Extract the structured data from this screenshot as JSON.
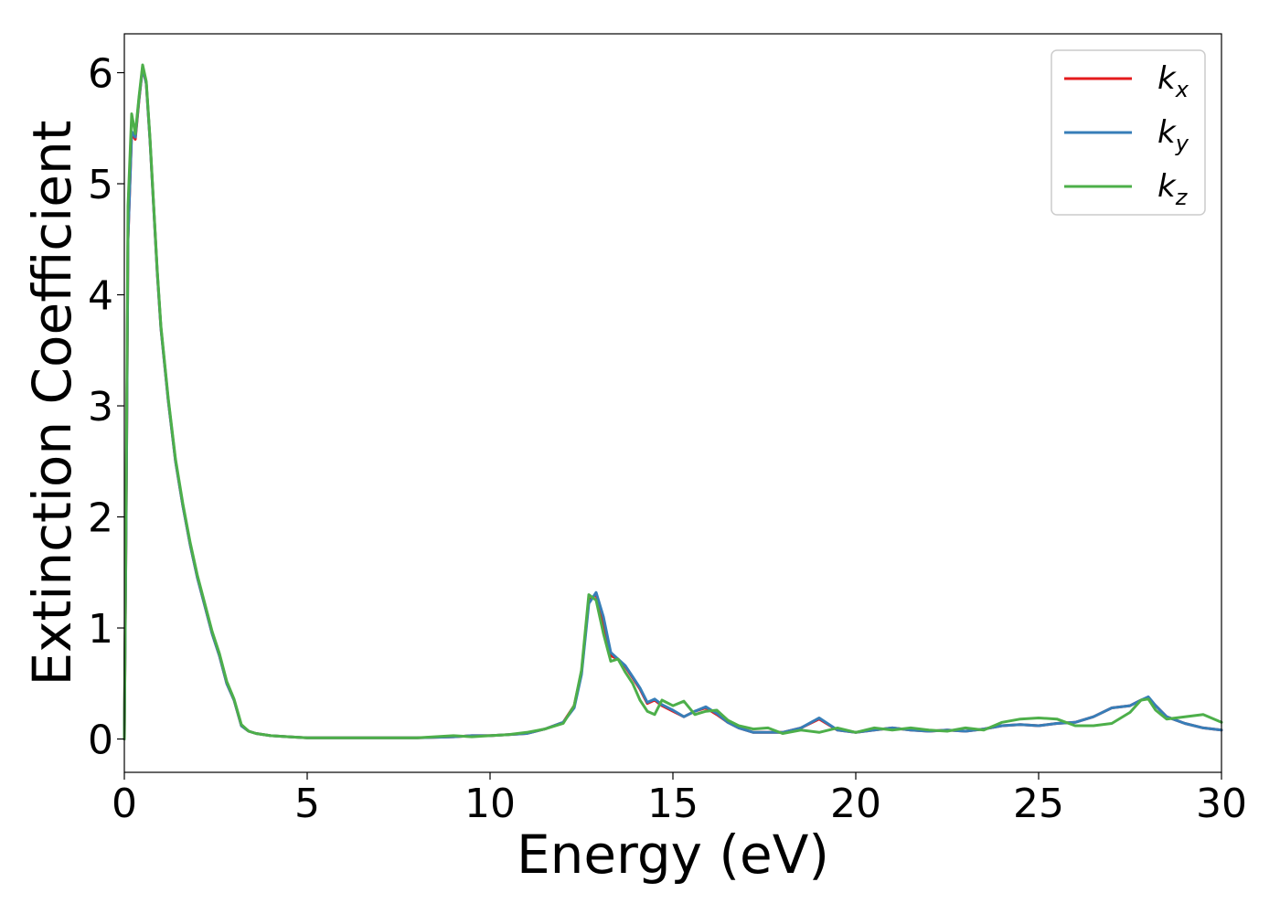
{
  "chart_data": {
    "type": "line",
    "title": "",
    "xlabel": "Energy (eV)",
    "ylabel": "Extinction Coefficient",
    "xlim": [
      0,
      30
    ],
    "ylim": [
      -0.3,
      6.35
    ],
    "xticks": [
      0,
      5,
      10,
      15,
      20,
      25,
      30
    ],
    "yticks": [
      0,
      1,
      2,
      3,
      4,
      5,
      6
    ],
    "grid": false,
    "legend": {
      "position": "top-right"
    },
    "series": [
      {
        "name": "k_x",
        "label_base": "k",
        "label_sub": "x",
        "color": "#e41a1c",
        "x": [
          0,
          0.05,
          0.1,
          0.2,
          0.3,
          0.4,
          0.5,
          0.6,
          0.7,
          0.8,
          0.9,
          1.0,
          1.2,
          1.4,
          1.6,
          1.8,
          2.0,
          2.2,
          2.4,
          2.6,
          2.8,
          3.0,
          3.2,
          3.4,
          3.6,
          4.0,
          4.5,
          5,
          6,
          7,
          8,
          9,
          9.5,
          10,
          10.5,
          11,
          11.5,
          12,
          12.3,
          12.5,
          12.7,
          12.9,
          13.1,
          13.3,
          13.5,
          13.7,
          13.9,
          14.1,
          14.3,
          14.5,
          14.7,
          15.0,
          15.3,
          15.6,
          15.9,
          16.2,
          16.5,
          16.8,
          17.2,
          17.6,
          18.0,
          18.5,
          19.0,
          19.5,
          20.0,
          20.5,
          21.0,
          21.5,
          22.0,
          22.5,
          23.0,
          23.5,
          24.0,
          24.5,
          25.0,
          25.5,
          26.0,
          26.5,
          27.0,
          27.5,
          27.8,
          28.0,
          28.2,
          28.5,
          29.0,
          29.5,
          30.0
        ],
        "values": [
          0,
          2.0,
          4.5,
          5.45,
          5.4,
          5.75,
          6.05,
          5.9,
          5.4,
          4.8,
          4.2,
          3.7,
          3.05,
          2.5,
          2.1,
          1.75,
          1.45,
          1.2,
          0.95,
          0.75,
          0.5,
          0.35,
          0.12,
          0.07,
          0.05,
          0.03,
          0.02,
          0.01,
          0.01,
          0.01,
          0.01,
          0.02,
          0.03,
          0.03,
          0.04,
          0.05,
          0.09,
          0.15,
          0.3,
          0.6,
          1.25,
          1.3,
          1.05,
          0.75,
          0.72,
          0.65,
          0.55,
          0.45,
          0.32,
          0.35,
          0.3,
          0.25,
          0.2,
          0.25,
          0.28,
          0.22,
          0.15,
          0.1,
          0.06,
          0.06,
          0.06,
          0.1,
          0.18,
          0.08,
          0.06,
          0.08,
          0.1,
          0.08,
          0.07,
          0.08,
          0.07,
          0.09,
          0.12,
          0.13,
          0.12,
          0.14,
          0.15,
          0.2,
          0.28,
          0.3,
          0.35,
          0.37,
          0.3,
          0.2,
          0.14,
          0.1,
          0.08
        ]
      },
      {
        "name": "k_y",
        "label_base": "k",
        "label_sub": "y",
        "color": "#377eb8",
        "x": [
          0,
          0.05,
          0.1,
          0.2,
          0.3,
          0.4,
          0.5,
          0.6,
          0.7,
          0.8,
          0.9,
          1.0,
          1.2,
          1.4,
          1.6,
          1.8,
          2.0,
          2.2,
          2.4,
          2.6,
          2.8,
          3.0,
          3.2,
          3.4,
          3.6,
          4.0,
          4.5,
          5,
          6,
          7,
          8,
          9,
          9.5,
          10,
          10.5,
          11,
          11.5,
          12,
          12.3,
          12.5,
          12.7,
          12.9,
          13.1,
          13.3,
          13.5,
          13.7,
          13.9,
          14.1,
          14.3,
          14.5,
          14.7,
          15.0,
          15.3,
          15.6,
          15.9,
          16.2,
          16.5,
          16.8,
          17.2,
          17.6,
          18.0,
          18.5,
          19.0,
          19.5,
          20.0,
          20.5,
          21.0,
          21.5,
          22.0,
          22.5,
          23.0,
          23.5,
          24.0,
          24.5,
          25.0,
          25.5,
          26.0,
          26.5,
          27.0,
          27.5,
          27.8,
          28.0,
          28.2,
          28.5,
          29.0,
          29.5,
          30.0
        ],
        "values": [
          0,
          2.0,
          4.5,
          5.47,
          5.42,
          5.76,
          6.05,
          5.9,
          5.4,
          4.8,
          4.2,
          3.7,
          3.05,
          2.5,
          2.1,
          1.75,
          1.45,
          1.2,
          0.95,
          0.75,
          0.5,
          0.35,
          0.12,
          0.07,
          0.05,
          0.03,
          0.02,
          0.01,
          0.01,
          0.01,
          0.01,
          0.02,
          0.03,
          0.03,
          0.04,
          0.05,
          0.09,
          0.15,
          0.28,
          0.58,
          1.22,
          1.32,
          1.1,
          0.78,
          0.72,
          0.66,
          0.56,
          0.46,
          0.33,
          0.36,
          0.31,
          0.26,
          0.2,
          0.25,
          0.29,
          0.23,
          0.15,
          0.1,
          0.06,
          0.06,
          0.06,
          0.1,
          0.19,
          0.08,
          0.06,
          0.08,
          0.1,
          0.08,
          0.07,
          0.08,
          0.07,
          0.09,
          0.12,
          0.13,
          0.12,
          0.14,
          0.15,
          0.2,
          0.28,
          0.3,
          0.35,
          0.38,
          0.3,
          0.2,
          0.14,
          0.1,
          0.08
        ]
      },
      {
        "name": "k_z",
        "label_base": "k",
        "label_sub": "z",
        "color": "#4daf4a",
        "x": [
          0,
          0.05,
          0.1,
          0.2,
          0.3,
          0.4,
          0.5,
          0.6,
          0.7,
          0.8,
          0.9,
          1.0,
          1.2,
          1.4,
          1.6,
          1.8,
          2.0,
          2.2,
          2.4,
          2.6,
          2.8,
          3.0,
          3.2,
          3.4,
          3.6,
          4.0,
          4.5,
          5,
          6,
          7,
          8,
          9,
          9.5,
          10,
          10.5,
          11,
          11.5,
          12,
          12.3,
          12.5,
          12.7,
          12.9,
          13.1,
          13.3,
          13.5,
          13.7,
          13.9,
          14.1,
          14.3,
          14.5,
          14.7,
          15.0,
          15.3,
          15.6,
          15.9,
          16.2,
          16.5,
          16.8,
          17.2,
          17.6,
          18.0,
          18.5,
          19.0,
          19.5,
          20.0,
          20.5,
          21.0,
          21.5,
          22.0,
          22.5,
          23.0,
          23.5,
          24.0,
          24.5,
          25.0,
          25.5,
          26.0,
          26.5,
          27.0,
          27.5,
          27.8,
          28.0,
          28.2,
          28.5,
          29.0,
          29.5,
          30.0
        ],
        "values": [
          0,
          2.2,
          4.8,
          5.63,
          5.45,
          5.78,
          6.07,
          5.92,
          5.42,
          4.82,
          4.22,
          3.72,
          3.07,
          2.52,
          2.12,
          1.77,
          1.47,
          1.22,
          0.97,
          0.77,
          0.52,
          0.36,
          0.13,
          0.07,
          0.05,
          0.03,
          0.02,
          0.01,
          0.01,
          0.01,
          0.01,
          0.03,
          0.02,
          0.03,
          0.04,
          0.06,
          0.09,
          0.14,
          0.3,
          0.62,
          1.3,
          1.25,
          0.95,
          0.7,
          0.72,
          0.6,
          0.5,
          0.35,
          0.25,
          0.22,
          0.35,
          0.3,
          0.34,
          0.22,
          0.25,
          0.26,
          0.17,
          0.12,
          0.09,
          0.1,
          0.05,
          0.08,
          0.06,
          0.1,
          0.06,
          0.1,
          0.08,
          0.1,
          0.08,
          0.07,
          0.1,
          0.08,
          0.15,
          0.18,
          0.19,
          0.18,
          0.12,
          0.12,
          0.14,
          0.24,
          0.35,
          0.36,
          0.26,
          0.18,
          0.2,
          0.22,
          0.15
        ]
      }
    ]
  }
}
